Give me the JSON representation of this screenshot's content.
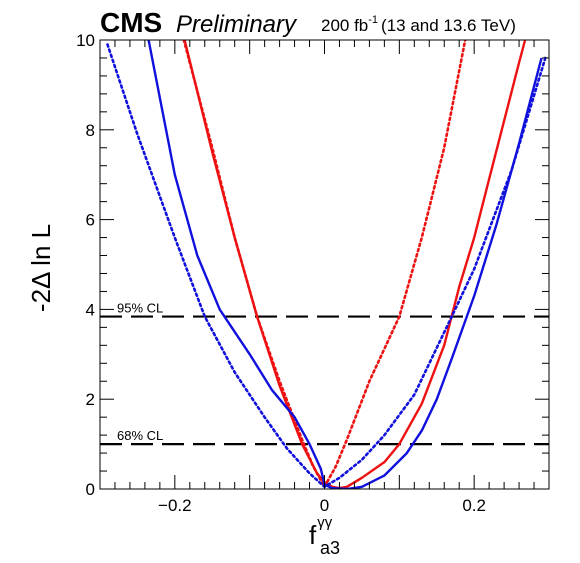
{
  "header": {
    "experiment": "CMS",
    "status": "Preliminary",
    "lumi_value": "200 fb",
    "lumi_exponent": "-1",
    "energy": "(13 and 13.6 TeV)"
  },
  "chart_data": {
    "type": "line",
    "xlabel": {
      "base": "f",
      "superscript": "γγ",
      "subscript": "a3"
    },
    "ylabel": "-2Δ ln L",
    "xlim": [
      -0.3,
      0.3
    ],
    "ylim": [
      0,
      10
    ],
    "xticks": [
      {
        "value": -0.2,
        "label": "−0.2"
      },
      {
        "value": 0,
        "label": "0"
      },
      {
        "value": 0.2,
        "label": "0.2"
      }
    ],
    "yticks": [
      {
        "value": 0,
        "label": "0"
      },
      {
        "value": 2,
        "label": "2"
      },
      {
        "value": 4,
        "label": "4"
      },
      {
        "value": 6,
        "label": "6"
      },
      {
        "value": 8,
        "label": "8"
      },
      {
        "value": 10,
        "label": "10"
      }
    ],
    "grid": false,
    "legend": "none",
    "reference_lines": [
      {
        "y": 3.84,
        "label": "95% CL"
      },
      {
        "y": 1.0,
        "label": "68% CL"
      }
    ],
    "series": [
      {
        "color": "#ee1111",
        "style": "solid",
        "points": [
          [
            -0.187,
            10
          ],
          [
            -0.15,
            7.5
          ],
          [
            -0.12,
            5.6
          ],
          [
            -0.09,
            3.84
          ],
          [
            -0.06,
            2.3
          ],
          [
            -0.03,
            1.0
          ],
          [
            -0.01,
            0.35
          ],
          [
            0,
            0.15
          ],
          [
            0.01,
            0.05
          ],
          [
            0.02,
            0.02
          ],
          [
            0.03,
            0.05
          ],
          [
            0.05,
            0.25
          ],
          [
            0.08,
            0.6
          ],
          [
            0.1,
            1.0
          ],
          [
            0.13,
            1.9
          ],
          [
            0.16,
            3.2
          ],
          [
            0.18,
            4.5
          ],
          [
            0.2,
            5.6
          ],
          [
            0.22,
            6.9
          ],
          [
            0.24,
            8.2
          ],
          [
            0.26,
            9.5
          ],
          [
            0.268,
            10
          ]
        ]
      },
      {
        "color": "#ee1111",
        "style": "dotted",
        "points": [
          [
            -0.188,
            10
          ],
          [
            -0.15,
            7.6
          ],
          [
            -0.12,
            5.6
          ],
          [
            -0.09,
            3.84
          ],
          [
            -0.06,
            2.4
          ],
          [
            -0.03,
            1.1
          ],
          [
            -0.015,
            0.5
          ],
          [
            0,
            0.05
          ],
          [
            0.015,
            0.5
          ],
          [
            0.03,
            1.1
          ],
          [
            0.06,
            2.4
          ],
          [
            0.1,
            3.84
          ],
          [
            0.13,
            5.6
          ],
          [
            0.16,
            7.6
          ],
          [
            0.188,
            10
          ]
        ]
      },
      {
        "color": "#1111dd",
        "style": "solid",
        "points": [
          [
            -0.235,
            10
          ],
          [
            -0.2,
            7.0
          ],
          [
            -0.17,
            5.2
          ],
          [
            -0.14,
            4.0
          ],
          [
            -0.1,
            3.0
          ],
          [
            -0.07,
            2.2
          ],
          [
            -0.04,
            1.6
          ],
          [
            -0.02,
            1.0
          ],
          [
            -0.005,
            0.45
          ],
          [
            0,
            0.1
          ],
          [
            0.01,
            0.02
          ],
          [
            0.03,
            0.0
          ],
          [
            0.05,
            0.05
          ],
          [
            0.08,
            0.3
          ],
          [
            0.11,
            0.8
          ],
          [
            0.13,
            1.3
          ],
          [
            0.15,
            2.0
          ],
          [
            0.17,
            2.9
          ],
          [
            0.2,
            4.3
          ],
          [
            0.23,
            5.9
          ],
          [
            0.26,
            7.7
          ],
          [
            0.29,
            9.6
          ]
        ]
      },
      {
        "color": "#1111dd",
        "style": "dotted",
        "points": [
          [
            -0.29,
            9.9
          ],
          [
            -0.25,
            7.9
          ],
          [
            -0.2,
            5.6
          ],
          [
            -0.16,
            3.84
          ],
          [
            -0.12,
            2.6
          ],
          [
            -0.08,
            1.6
          ],
          [
            -0.05,
            0.9
          ],
          [
            -0.02,
            0.35
          ],
          [
            0,
            0.05
          ],
          [
            0.02,
            0.25
          ],
          [
            0.05,
            0.65
          ],
          [
            0.08,
            1.2
          ],
          [
            0.12,
            2.1
          ],
          [
            0.17,
            3.84
          ],
          [
            0.2,
            4.9
          ],
          [
            0.25,
            7.1
          ],
          [
            0.295,
            9.6
          ]
        ]
      }
    ]
  }
}
